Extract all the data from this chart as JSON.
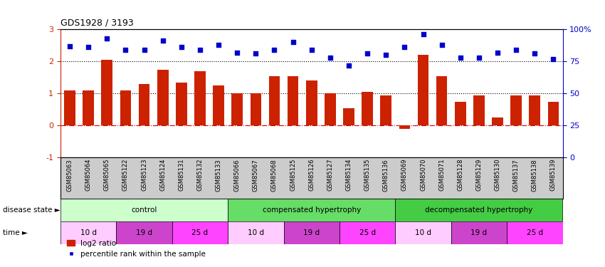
{
  "title": "GDS1928 / 3193",
  "samples": [
    "GSM85063",
    "GSM85064",
    "GSM85065",
    "GSM85122",
    "GSM85123",
    "GSM85124",
    "GSM85131",
    "GSM85132",
    "GSM85133",
    "GSM85066",
    "GSM85067",
    "GSM85068",
    "GSM85125",
    "GSM85126",
    "GSM85127",
    "GSM85134",
    "GSM85135",
    "GSM85136",
    "GSM85069",
    "GSM85070",
    "GSM85071",
    "GSM85128",
    "GSM85129",
    "GSM85130",
    "GSM85137",
    "GSM85138",
    "GSM85139"
  ],
  "log2_ratio": [
    1.1,
    1.1,
    2.05,
    1.1,
    1.3,
    1.75,
    1.35,
    1.7,
    1.25,
    1.0,
    1.0,
    1.55,
    1.55,
    1.4,
    1.0,
    0.55,
    1.05,
    0.95,
    -0.1,
    2.2,
    1.55,
    0.75,
    0.95,
    0.25,
    0.95,
    0.95,
    0.75
  ],
  "percentile": [
    87,
    86,
    93,
    84,
    84,
    91,
    86,
    84,
    88,
    82,
    81,
    84,
    90,
    84,
    78,
    72,
    81,
    80,
    86,
    96,
    88,
    78,
    78,
    82,
    84,
    81,
    77
  ],
  "disease_state_groups": [
    {
      "label": "control",
      "start": 0,
      "end": 9,
      "color": "#ccffcc"
    },
    {
      "label": "compensated hypertrophy",
      "start": 9,
      "end": 18,
      "color": "#66dd66"
    },
    {
      "label": "decompensated hypertrophy",
      "start": 18,
      "end": 27,
      "color": "#44cc44"
    }
  ],
  "time_groups": [
    {
      "label": "10 d",
      "start": 0,
      "end": 3,
      "color": "#ffaaff"
    },
    {
      "label": "19 d",
      "start": 3,
      "end": 6,
      "color": "#dd55dd"
    },
    {
      "label": "25 d",
      "start": 6,
      "end": 9,
      "color": "#ff44ff"
    },
    {
      "label": "10 d",
      "start": 9,
      "end": 12,
      "color": "#ffaaff"
    },
    {
      "label": "19 d",
      "start": 12,
      "end": 15,
      "color": "#dd55dd"
    },
    {
      "label": "25 d",
      "start": 15,
      "end": 18,
      "color": "#ff44ff"
    },
    {
      "label": "10 d",
      "start": 18,
      "end": 21,
      "color": "#ffaaff"
    },
    {
      "label": "19 d",
      "start": 21,
      "end": 24,
      "color": "#dd55dd"
    },
    {
      "label": "25 d",
      "start": 24,
      "end": 27,
      "color": "#ff44ff"
    }
  ],
  "bar_color": "#cc2200",
  "dot_color": "#0000cc",
  "left_ylim": [
    -1,
    3
  ],
  "right_ylim": [
    0,
    100
  ],
  "left_yticks": [
    -1,
    0,
    1,
    2,
    3
  ],
  "right_yticks": [
    0,
    25,
    50,
    75,
    100
  ],
  "right_yticklabels": [
    "0",
    "25",
    "50",
    "75",
    "100%"
  ],
  "hline_y": [
    0,
    1,
    2
  ],
  "hline_styles": [
    "dashdot",
    "dotted",
    "dotted"
  ],
  "hline_colors": [
    "#cc0000",
    "#000000",
    "#000000"
  ],
  "disease_state_label": "disease state",
  "time_label": "time",
  "legend_bar_label": "log2 ratio",
  "legend_dot_label": "percentile rank within the sample",
  "title_color": "#cc2200",
  "left_tick_color": "#cc2200",
  "xtick_bg_color": "#cccccc"
}
